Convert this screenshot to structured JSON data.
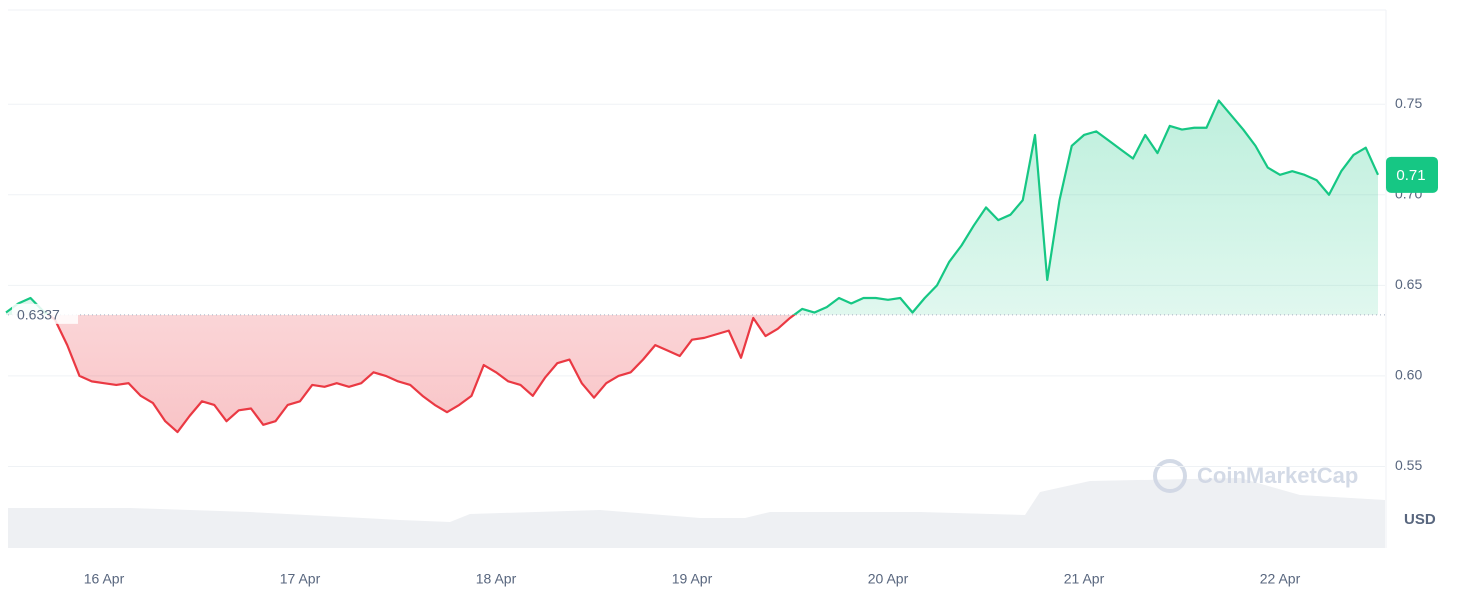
{
  "chart_data": {
    "type": "line",
    "categories": [
      null,
      null,
      null,
      null,
      null,
      null,
      null,
      null,
      "16 Apr",
      null,
      null,
      null,
      null,
      null,
      null,
      null,
      null,
      null,
      null,
      null,
      null,
      null,
      null,
      null,
      "17 Apr",
      null,
      null,
      null,
      null,
      null,
      null,
      null,
      null,
      null,
      null,
      null,
      null,
      null,
      null,
      null,
      "18 Apr",
      null,
      null,
      null,
      null,
      null,
      null,
      null,
      null,
      null,
      null,
      null,
      null,
      null,
      null,
      null,
      "19 Apr",
      null,
      null,
      null,
      null,
      null,
      null,
      null,
      null,
      null,
      null,
      null,
      null,
      null,
      null,
      null,
      "20 Apr",
      null,
      null,
      null,
      null,
      null,
      null,
      null,
      null,
      null,
      null,
      null,
      null,
      null,
      null,
      null,
      "21 Apr",
      null,
      null,
      null,
      null,
      null,
      null,
      null,
      null,
      null,
      null,
      null,
      null,
      null,
      null,
      null,
      "22 Apr",
      null,
      null,
      null,
      null,
      null,
      null,
      null,
      null
    ],
    "series": [
      {
        "name": null,
        "values": [
          0.635,
          0.64,
          0.643,
          0.636,
          0.631,
          0.617,
          0.6,
          0.597,
          0.596,
          0.595,
          0.596,
          0.589,
          0.585,
          0.575,
          0.569,
          0.578,
          0.586,
          0.584,
          0.575,
          0.581,
          0.582,
          0.573,
          0.575,
          0.584,
          0.586,
          0.595,
          0.594,
          0.596,
          0.594,
          0.596,
          0.602,
          0.6,
          0.597,
          0.595,
          0.589,
          0.584,
          0.58,
          0.584,
          0.589,
          0.606,
          0.602,
          0.597,
          0.595,
          0.589,
          0.599,
          0.607,
          0.609,
          0.596,
          0.588,
          0.596,
          0.6,
          0.602,
          0.609,
          0.617,
          0.614,
          0.611,
          0.62,
          0.621,
          0.623,
          0.625,
          0.61,
          0.632,
          0.622,
          0.626,
          0.632,
          0.637,
          0.635,
          0.638,
          0.643,
          0.64,
          0.643,
          0.643,
          0.642,
          0.643,
          0.635,
          0.643,
          0.65,
          0.663,
          0.672,
          0.683,
          0.693,
          0.686,
          0.689,
          0.697,
          0.733,
          0.653,
          0.697,
          0.727,
          0.733,
          0.735,
          0.73,
          0.725,
          0.72,
          0.733,
          0.723,
          0.738,
          0.736,
          0.737,
          0.737,
          0.752,
          0.744,
          0.736,
          0.727,
          0.715,
          0.711,
          0.713,
          0.711,
          0.708,
          0.7,
          0.713,
          0.722,
          0.726,
          0.711
        ]
      }
    ],
    "reference_line": 0.6337,
    "current_label": "0.71",
    "unit": "USD",
    "watermark": "CoinMarketCap",
    "ylim": [
      0.505,
      0.802
    ],
    "yticks": [
      0.55,
      {
        "value": 0.6,
        "label": "0.60"
      },
      0.65,
      {
        "value": 0.7,
        "label": "0.70"
      },
      0.75
    ],
    "grid": true,
    "colors": {
      "up": "#16c784",
      "down": "#ea3943"
    }
  }
}
